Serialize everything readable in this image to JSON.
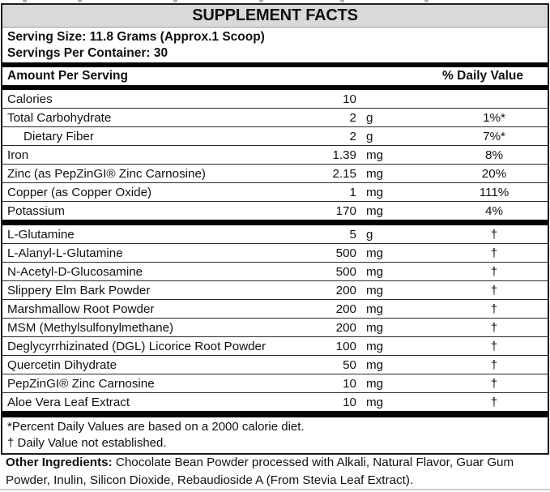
{
  "label": {
    "title": "SUPPLEMENT FACTS",
    "serving_size": "Serving Size: 11.8 Grams (Approx.1 Scoop)",
    "servings_per_container": "Servings Per Container: 30",
    "column_headers": {
      "amount": "Amount Per Serving",
      "daily_value": "% Daily Value"
    },
    "sections": [
      {
        "rows": [
          {
            "name": "Calories",
            "amount": "10",
            "unit": "",
            "dv": "",
            "indent": false
          },
          {
            "name": "Total Carbohydrate",
            "amount": "2",
            "unit": "g",
            "dv": "1%*",
            "indent": false
          },
          {
            "name": "Dietary Fiber",
            "amount": "2",
            "unit": "g",
            "dv": "7%*",
            "indent": true
          },
          {
            "name": "Iron",
            "amount": "1.39",
            "unit": "mg",
            "dv": "8%",
            "indent": false
          },
          {
            "name": "Zinc (as PepZinGI® Zinc Carnosine)",
            "amount": "2.15",
            "unit": "mg",
            "dv": "20%",
            "indent": false
          },
          {
            "name": "Copper (as Copper Oxide)",
            "amount": "1",
            "unit": "mg",
            "dv": "111%",
            "indent": false
          },
          {
            "name": "Potassium",
            "amount": "170",
            "unit": "mg",
            "dv": "4%",
            "indent": false
          }
        ]
      },
      {
        "rows": [
          {
            "name": "L-Glutamine",
            "amount": "5",
            "unit": "g",
            "dv": "†",
            "indent": false
          },
          {
            "name": "L-Alanyl-L-Glutamine",
            "amount": "500",
            "unit": "mg",
            "dv": "†",
            "indent": false
          },
          {
            "name": "N-Acetyl-D-Glucosamine",
            "amount": "500",
            "unit": "mg",
            "dv": "†",
            "indent": false
          },
          {
            "name": "Slippery Elm Bark Powder",
            "amount": "200",
            "unit": "mg",
            "dv": "†",
            "indent": false
          },
          {
            "name": "Marshmallow Root Powder",
            "amount": "200",
            "unit": "mg",
            "dv": "†",
            "indent": false
          },
          {
            "name": "MSM (Methylsulfonylmethane)",
            "amount": "200",
            "unit": "mg",
            "dv": "†",
            "indent": false
          },
          {
            "name": "Deglycyrrhizinated (DGL) Licorice Root Powder",
            "amount": "100",
            "unit": "mg",
            "dv": "†",
            "indent": false
          },
          {
            "name": "Quercetin Dihydrate",
            "amount": "50",
            "unit": "mg",
            "dv": "†",
            "indent": false
          },
          {
            "name": "PepZinGI® Zinc Carnosine",
            "amount": "10",
            "unit": "mg",
            "dv": "†",
            "indent": false
          },
          {
            "name": "Aloe Vera Leaf Extract",
            "amount": "10",
            "unit": "mg",
            "dv": "†",
            "indent": false
          }
        ]
      }
    ],
    "footnotes": [
      "*Percent Daily Values are based on a 2000 calorie diet.",
      "† Daily Value not established."
    ],
    "other_ingredients_label": "Other Ingredients:",
    "other_ingredients_text": " Chocolate Bean Powder processed with Alkali, Natural Flavor, Guar Gum Powder, Inulin, Silicon Dioxide, Rebaudioside A (From Stevia Leaf Extract)."
  },
  "colors": {
    "title_background": "#d9d9d9",
    "rule_black": "#050505",
    "text": "#111111",
    "bottom_edge": "#ccd0d4"
  }
}
